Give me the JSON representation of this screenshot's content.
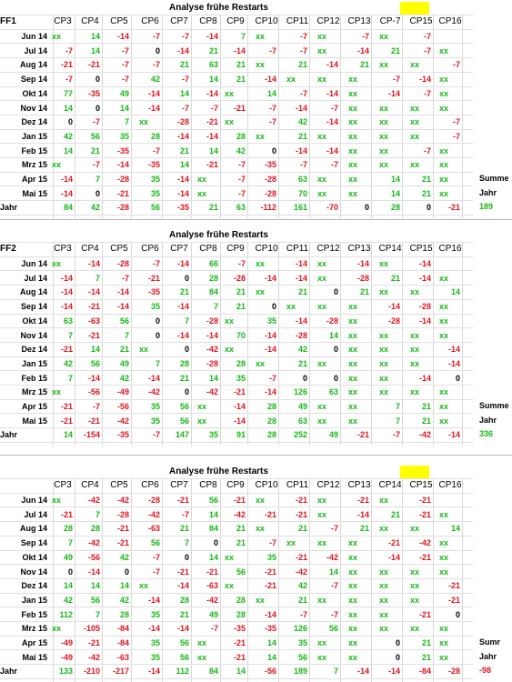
{
  "blocks": [
    {
      "label": "FF1",
      "title": "Analyse frühe Restarts",
      "headers": [
        "CP3",
        "CP4",
        "CP5",
        "CP6",
        "CP7",
        "CP8",
        "CP9",
        "CP10",
        "CP11",
        "CP12",
        "CP13",
        "CP-7",
        "CP15",
        "CP16"
      ],
      "highlight_col": 11,
      "rows": [
        [
          "Jun 14",
          "xx",
          "14",
          "-14",
          "-7",
          "-7",
          "-14",
          "7",
          "xx",
          "-7",
          "xx",
          "-7",
          "xx",
          "-7",
          ""
        ],
        [
          "Jul 14",
          "-7",
          "14",
          "-7",
          "0",
          "-14",
          "21",
          "-14",
          "-7",
          "-7",
          "xx",
          "-14",
          "21",
          "-7",
          "xx"
        ],
        [
          "Aug 14",
          "-21",
          "-21",
          "-7",
          "-7",
          "21",
          "63",
          "21",
          "xx",
          "21",
          "-14",
          "21",
          "xx",
          "xx",
          "-7"
        ],
        [
          "Sep 14",
          "-7",
          "0",
          "-7",
          "42",
          "-7",
          "14",
          "21",
          "-14",
          "xx",
          "xx",
          "xx",
          "-7",
          "-14",
          "xx"
        ],
        [
          "Okt 14",
          "77",
          "-35",
          "49",
          "-14",
          "14",
          "-14",
          "xx",
          "14",
          "-7",
          "-14",
          "xx",
          "-14",
          "-7",
          "xx"
        ],
        [
          "Nov 14",
          "14",
          "0",
          "14",
          "-14",
          "-7",
          "-7",
          "-21",
          "-7",
          "-14",
          "-7",
          "xx",
          "xx",
          "xx",
          "xx"
        ],
        [
          "Dez 14",
          "0",
          "-7",
          "7",
          "xx",
          "-28",
          "-21",
          "xx",
          "-7",
          "42",
          "-14",
          "xx",
          "xx",
          "xx",
          "-7"
        ],
        [
          "Jan 15",
          "42",
          "56",
          "35",
          "28",
          "-14",
          "-14",
          "28",
          "xx",
          "21",
          "xx",
          "xx",
          "xx",
          "xx",
          "-7"
        ],
        [
          "Feb 15",
          "14",
          "21",
          "-35",
          "-7",
          "21",
          "14",
          "42",
          "0",
          "-14",
          "-14",
          "xx",
          "xx",
          "-7",
          "xx"
        ],
        [
          "Mrz 15",
          "xx",
          "-7",
          "-14",
          "-35",
          "14",
          "-21",
          "-7",
          "-35",
          "-7",
          "-7",
          "xx",
          "xx",
          "xx",
          "xx"
        ],
        [
          "Apr 15",
          "-14",
          "7",
          "-28",
          "35",
          "-14",
          "xx",
          "-7",
          "-28",
          "63",
          "xx",
          "xx",
          "14",
          "21",
          "xx"
        ],
        [
          "Mai 15",
          "-14",
          "0",
          "-21",
          "35",
          "-14",
          "xx",
          "-7",
          "-28",
          "70",
          "xx",
          "xx",
          "14",
          "21",
          "xx"
        ],
        [
          "Jahr",
          "84",
          "42",
          "-28",
          "56",
          "-35",
          "21",
          "63",
          "-112",
          "161",
          "-70",
          "0",
          "28",
          "0",
          "-21"
        ]
      ],
      "side": [
        {
          "row": 10,
          "text": "Summe"
        },
        {
          "row": 11,
          "text": "Jahr"
        },
        {
          "row": 12,
          "text": "189"
        }
      ]
    },
    {
      "label": "FF2",
      "title": "Analyse frühe Restarts",
      "headers": [
        "CP3",
        "CP4",
        "CP5",
        "CP6",
        "CP7",
        "CP8",
        "CP9",
        "CP10",
        "CP11",
        "CP12",
        "CP13",
        "CP14",
        "CP15",
        "CP16"
      ],
      "highlight_col": -1,
      "rows": [
        [
          "Jun 14",
          "xx",
          "-14",
          "-28",
          "-7",
          "-14",
          "66",
          "-7",
          "xx",
          "-14",
          "xx",
          "-14",
          "xx",
          "-14",
          ""
        ],
        [
          "Jul 14",
          "-14",
          "7",
          "-7",
          "-21",
          "0",
          "28",
          "-28",
          "-14",
          "-14",
          "xx",
          "-28",
          "21",
          "-14",
          "xx"
        ],
        [
          "Aug 14",
          "-14",
          "-14",
          "-14",
          "-35",
          "21",
          "84",
          "21",
          "xx",
          "21",
          "0",
          "21",
          "xx",
          "xx",
          "14"
        ],
        [
          "Sep 14",
          "-14",
          "-21",
          "-14",
          "35",
          "-14",
          "7",
          "21",
          "0",
          "xx",
          "xx",
          "xx",
          "-14",
          "-28",
          "xx"
        ],
        [
          "Okt 14",
          "63",
          "-63",
          "56",
          "0",
          "7",
          "-28",
          "xx",
          "35",
          "-14",
          "-28",
          "xx",
          "-28",
          "-14",
          "xx"
        ],
        [
          "Nov 14",
          "7",
          "-21",
          "7",
          "0",
          "-14",
          "-14",
          "70",
          "-14",
          "-28",
          "14",
          "xx",
          "xx",
          "xx",
          "xx"
        ],
        [
          "Dez 14",
          "-21",
          "14",
          "21",
          "xx",
          "0",
          "-42",
          "xx",
          "-14",
          "42",
          "0",
          "xx",
          "xx",
          "xx",
          "-14"
        ],
        [
          "Jan 15",
          "42",
          "56",
          "49",
          "7",
          "28",
          "-28",
          "28",
          "xx",
          "21",
          "xx",
          "xx",
          "xx",
          "xx",
          "-14"
        ],
        [
          "Feb 15",
          "7",
          "-14",
          "42",
          "-14",
          "21",
          "14",
          "35",
          "-7",
          "0",
          "0",
          "xx",
          "xx",
          "-14",
          "0"
        ],
        [
          "Mrz 15",
          "xx",
          "-56",
          "-49",
          "-42",
          "0",
          "-42",
          "-21",
          "-14",
          "126",
          "63",
          "xx",
          "xx",
          "xx",
          "xx"
        ],
        [
          "Apr 15",
          "-21",
          "-7",
          "-56",
          "35",
          "56",
          "xx",
          "-14",
          "28",
          "49",
          "xx",
          "xx",
          "7",
          "21",
          "xx"
        ],
        [
          "Mai 15",
          "-21",
          "-21",
          "-42",
          "35",
          "56",
          "xx",
          "-14",
          "28",
          "63",
          "xx",
          "xx",
          "7",
          "21",
          "xx"
        ],
        [
          "Jahr",
          "14",
          "-154",
          "-35",
          "-7",
          "147",
          "35",
          "91",
          "28",
          "252",
          "49",
          "-21",
          "-7",
          "-42",
          "-14"
        ]
      ],
      "side": [
        {
          "row": 10,
          "text": "Summe"
        },
        {
          "row": 11,
          "text": "Jahr"
        },
        {
          "row": 12,
          "text": "336"
        }
      ]
    },
    {
      "label": "",
      "title": "Analyse frühe Restarts",
      "headers": [
        "CP3",
        "CP4",
        "CP5",
        "CP6",
        "CP7",
        "CP8",
        "CP9",
        "CP10",
        "CP11",
        "CP12",
        "CP13",
        "CP14",
        "CP15",
        "CP16"
      ],
      "highlight_col": 11,
      "rows": [
        [
          "Jun 14",
          "xx",
          "-42",
          "-42",
          "-28",
          "-21",
          "56",
          "-21",
          "xx",
          "-21",
          "xx",
          "-21",
          "xx",
          "-21",
          ""
        ],
        [
          "Jul 14",
          "-21",
          "7",
          "-28",
          "-42",
          "-7",
          "14",
          "-42",
          "-21",
          "-21",
          "xx",
          "-14",
          "21",
          "-21",
          "xx"
        ],
        [
          "Aug 14",
          "28",
          "28",
          "-21",
          "-63",
          "21",
          "84",
          "21",
          "xx",
          "21",
          "-7",
          "21",
          "xx",
          "xx",
          "14"
        ],
        [
          "Sep 14",
          "7",
          "-42",
          "-21",
          "56",
          "7",
          "0",
          "21",
          "-7",
          "xx",
          "xx",
          "xx",
          "-21",
          "-42",
          "xx"
        ],
        [
          "Okt 14",
          "49",
          "-56",
          "42",
          "-7",
          "0",
          "14",
          "xx",
          "35",
          "-21",
          "-42",
          "xx",
          "-14",
          "-21",
          "xx"
        ],
        [
          "Nov 14",
          "0",
          "-14",
          "0",
          "-7",
          "-21",
          "-21",
          "56",
          "-21",
          "-42",
          "14",
          "xx",
          "xx",
          "xx",
          "xx"
        ],
        [
          "Dez 14",
          "14",
          "14",
          "14",
          "xx",
          "-14",
          "-63",
          "xx",
          "-21",
          "42",
          "-7",
          "xx",
          "xx",
          "xx",
          "-21"
        ],
        [
          "Jan 15",
          "42",
          "56",
          "42",
          "-14",
          "28",
          "-42",
          "28",
          "xx",
          "21",
          "xx",
          "xx",
          "xx",
          "xx",
          "-21"
        ],
        [
          "Feb 15",
          "112",
          "7",
          "28",
          "35",
          "21",
          "49",
          "28",
          "-14",
          "-7",
          "-7",
          "xx",
          "xx",
          "-21",
          "0"
        ],
        [
          "Mrz 15",
          "xx",
          "-105",
          "-84",
          "-14",
          "-14",
          "-7",
          "-35",
          "-35",
          "126",
          "56",
          "xx",
          "xx",
          "xx",
          "xx"
        ],
        [
          "Apr 15",
          "-49",
          "-21",
          "-84",
          "35",
          "56",
          "xx",
          "-21",
          "14",
          "35",
          "xx",
          "xx",
          "0",
          "21",
          "xx"
        ],
        [
          "Mai 15",
          "-49",
          "-42",
          "-63",
          "35",
          "56",
          "xx",
          "-21",
          "14",
          "56",
          "xx",
          "xx",
          "0",
          "21",
          "xx"
        ],
        [
          "Jahr",
          "133",
          "-210",
          "-217",
          "-14",
          "112",
          "84",
          "14",
          "-56",
          "189",
          "7",
          "-14",
          "-14",
          "-84",
          "-28"
        ]
      ],
      "side": [
        {
          "row": 10,
          "text": "Sumr"
        },
        {
          "row": 11,
          "text": "Jahr"
        },
        {
          "row": 12,
          "text": "-98"
        }
      ]
    }
  ],
  "colors": {
    "positive": "#16b716",
    "negative": "#e0141e",
    "neutral": "#000000",
    "highlight": "#ffff00"
  }
}
